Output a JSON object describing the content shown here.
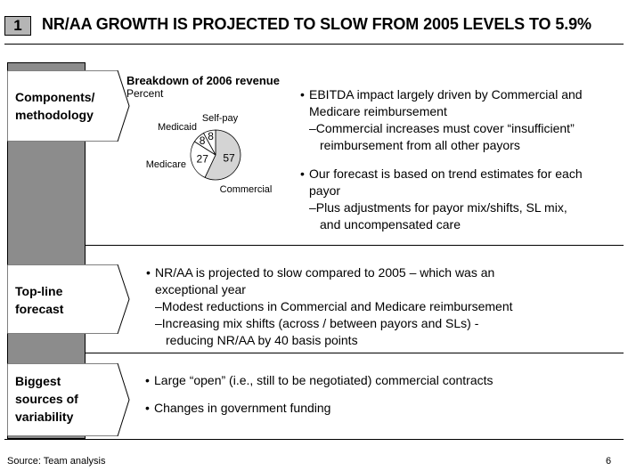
{
  "header": {
    "badge": "1",
    "title": "NR/AA GROWTH IS PROJECTED TO SLOW FROM 2005 LEVELS TO 5.9%"
  },
  "sections": [
    {
      "label_lines": [
        "Components/",
        "methodology"
      ]
    },
    {
      "label_lines": [
        "Top-line",
        "forecast"
      ]
    },
    {
      "label_lines": [
        "Biggest",
        "sources of",
        "variability"
      ]
    }
  ],
  "chart": {
    "title": "Breakdown of 2006 revenue",
    "unit": "Percent"
  },
  "chart_data": {
    "type": "pie",
    "title": "Breakdown of 2006 revenue",
    "unit": "Percent",
    "slices": [
      {
        "name": "Commercial",
        "value": 57
      },
      {
        "name": "Medicare",
        "value": 27
      },
      {
        "name": "Medicaid",
        "value": 8
      },
      {
        "name": "Self-pay",
        "value": 8
      }
    ]
  },
  "components": {
    "bullet1": "EBITDA impact largely driven by Commercial and",
    "bullet1_cont": "Medicare reimbursement",
    "sub1": "Commercial increases must cover “insufficient”",
    "sub1_cont": "reimbursement from all other payors",
    "bullet2": "Our forecast is based on trend estimates for each",
    "bullet2_cont": "payor",
    "sub2": "Plus adjustments for payor mix/shifts, SL mix,",
    "sub2_cont": "and uncompensated care"
  },
  "topline": {
    "bullet": "NR/AA is projected to slow compared to 2005 – which was an",
    "bullet_cont": "exceptional year",
    "sub1": "Modest reductions in Commercial and Medicare reimbursement",
    "sub2": "Increasing mix shifts (across / between payors and SLs) -",
    "sub2_cont": "reducing NR/AA by 40 basis points"
  },
  "variability": {
    "bullet1": "Large “open” (i.e., still to be negotiated) commercial contracts",
    "bullet2": "Changes in government funding"
  },
  "footer": {
    "source": "Source: Team analysis",
    "page": "6"
  }
}
